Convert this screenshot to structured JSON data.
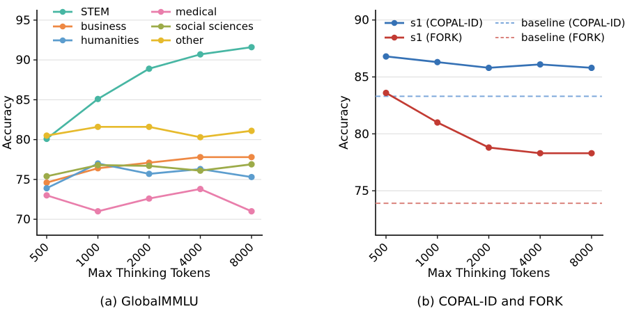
{
  "figure": {
    "panel_a_caption": "(a) GlobalMMLU",
    "panel_b_caption": "(b) COPAL-ID and FORK"
  },
  "chart_data": [
    {
      "type": "line",
      "title": "",
      "caption": "(a) GlobalMMLU",
      "xlabel": "Max Thinking Tokens",
      "ylabel": "Accuracy",
      "x_categories": [
        "500",
        "1000",
        "2000",
        "4000",
        "8000"
      ],
      "x_values": [
        500,
        1000,
        2000,
        4000,
        8000
      ],
      "yticks": [
        70,
        75,
        80,
        85,
        90,
        95
      ],
      "ylim": [
        68,
        96.3
      ],
      "grid": true,
      "legend_position": "upper-left, two columns, frameless",
      "series": [
        {
          "name": "STEM",
          "color": "#47b6a3",
          "line": "solid",
          "marker": "circle",
          "values": [
            80.1,
            85.1,
            88.9,
            90.7,
            91.6
          ]
        },
        {
          "name": "business",
          "color": "#ee8843",
          "line": "solid",
          "marker": "circle",
          "values": [
            74.6,
            76.4,
            77.1,
            77.8,
            77.8
          ]
        },
        {
          "name": "humanities",
          "color": "#5c9dce",
          "line": "solid",
          "marker": "circle",
          "values": [
            73.9,
            77.0,
            75.7,
            76.3,
            75.3
          ]
        },
        {
          "name": "medical",
          "color": "#e97eab",
          "line": "solid",
          "marker": "circle",
          "values": [
            73.0,
            71.0,
            72.6,
            73.8,
            71.0
          ]
        },
        {
          "name": "social sciences",
          "color": "#9cab49",
          "line": "solid",
          "marker": "circle",
          "values": [
            75.4,
            76.8,
            76.7,
            76.1,
            76.9
          ]
        },
        {
          "name": "other",
          "color": "#e6ba2c",
          "line": "solid",
          "marker": "circle",
          "values": [
            80.5,
            81.6,
            81.6,
            80.3,
            81.1
          ]
        }
      ]
    },
    {
      "type": "line",
      "title": "",
      "caption": "(b) COPAL-ID and FORK",
      "xlabel": "Max Thinking Tokens",
      "ylabel": "Accuracy",
      "x_categories": [
        "500",
        "1000",
        "2000",
        "4000",
        "8000"
      ],
      "x_values": [
        500,
        1000,
        2000,
        4000,
        8000
      ],
      "yticks": [
        75,
        80,
        85,
        90
      ],
      "ylim": [
        71.1,
        90.9
      ],
      "grid": true,
      "legend_position": "upper-left, two columns, frameless",
      "series": [
        {
          "name": "s1 (COPAL-ID)",
          "color": "#3571b5",
          "line": "solid",
          "marker": "circle",
          "values": [
            86.8,
            86.3,
            85.8,
            86.1,
            85.8
          ]
        },
        {
          "name": "s1 (FORK)",
          "color": "#c23b33",
          "line": "solid",
          "marker": "circle",
          "values": [
            83.6,
            81.0,
            78.8,
            78.3,
            78.3
          ]
        },
        {
          "name": "baseline (COPAL-ID)",
          "color": "#7da8db",
          "line": "dashed",
          "marker": "none",
          "constant": 83.3
        },
        {
          "name": "baseline (FORK)",
          "color": "#da837d",
          "line": "dashed",
          "marker": "none",
          "constant": 73.9
        }
      ]
    }
  ],
  "colors": {
    "background": "#ffffff",
    "gridline": "#e3e3e3",
    "spine": "#1a1a1a",
    "text": "#000000"
  }
}
